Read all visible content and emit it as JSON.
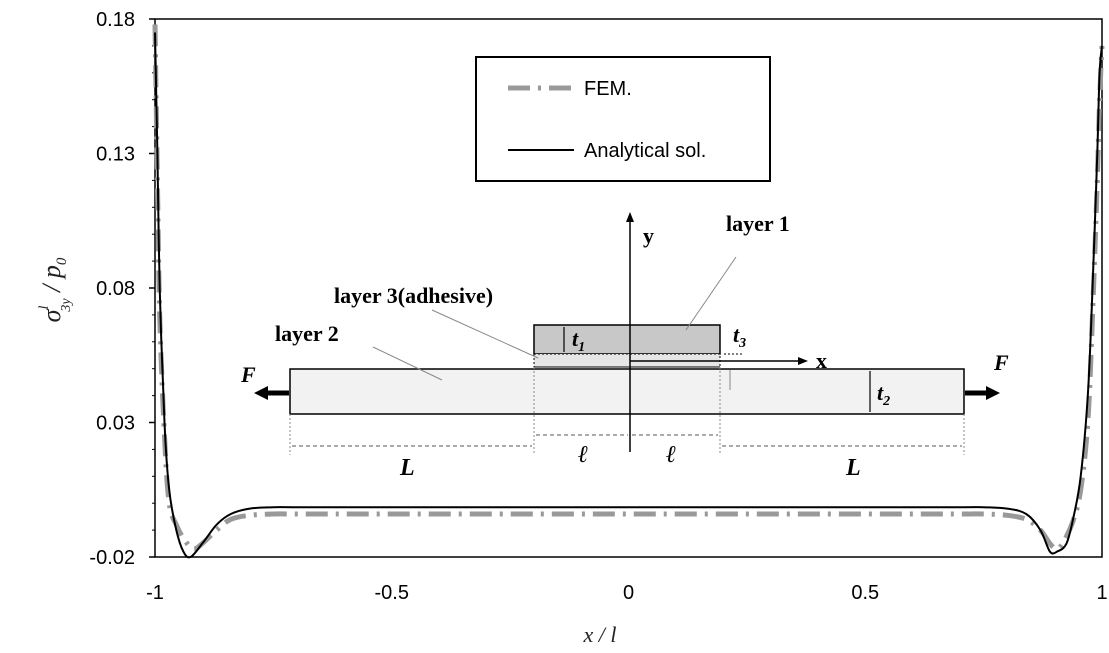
{
  "chart_data": {
    "type": "line",
    "title": "",
    "xlabel": "x / l",
    "ylabel_main": "σ",
    "ylabel_sup": "l",
    "ylabel_sub": "3y",
    "ylabel_rest": " / p",
    "ylabel_rest_sub": "0",
    "xlim": [
      -1,
      1
    ],
    "ylim": [
      -0.02,
      0.18
    ],
    "x_ticks": [
      "-1",
      "-0.5",
      "0",
      "0.5",
      "1"
    ],
    "y_ticks": [
      "-0.02",
      "0.03",
      "0.08",
      "0.13",
      "0.18"
    ],
    "legend_position": "top-center",
    "grid": false,
    "series": [
      {
        "name": "FEM.",
        "style": "dash-dot",
        "color": "#999999",
        "x": [
          -1,
          -0.995,
          -0.99,
          -0.98,
          -0.97,
          -0.955,
          -0.94,
          -0.92,
          -0.9,
          -0.87,
          -0.84,
          -0.8,
          -0.75,
          -0.7,
          -0.5,
          0,
          0.5,
          0.7,
          0.75,
          0.8,
          0.84,
          0.87,
          0.89,
          0.905,
          0.92,
          0.94,
          0.955,
          0.97,
          0.98,
          0.99,
          0.995,
          1
        ],
        "y": [
          0.178,
          0.12,
          0.07,
          0.025,
          0.0,
          -0.008,
          -0.013,
          -0.017,
          -0.015,
          -0.01,
          -0.006,
          -0.0045,
          -0.004,
          -0.004,
          -0.004,
          -0.004,
          -0.004,
          -0.004,
          -0.004,
          -0.0045,
          -0.006,
          -0.01,
          -0.015,
          -0.017,
          -0.014,
          -0.006,
          0.005,
          0.03,
          0.07,
          0.12,
          0.15,
          0.17
        ]
      },
      {
        "name": "Analytical sol.",
        "style": "solid",
        "color": "#000000",
        "x": [
          -1,
          -0.995,
          -0.99,
          -0.98,
          -0.97,
          -0.955,
          -0.94,
          -0.925,
          -0.9,
          -0.87,
          -0.84,
          -0.8,
          -0.75,
          -0.7,
          -0.5,
          0,
          0.5,
          0.7,
          0.75,
          0.8,
          0.84,
          0.87,
          0.89,
          0.905,
          0.925,
          0.94,
          0.955,
          0.97,
          0.98,
          0.99,
          0.995,
          1
        ],
        "y": [
          0.175,
          0.13,
          0.08,
          0.03,
          0.005,
          -0.01,
          -0.018,
          -0.02,
          -0.015,
          -0.008,
          -0.004,
          -0.002,
          -0.0015,
          -0.0015,
          -0.0015,
          -0.0015,
          -0.0015,
          -0.0015,
          -0.0015,
          -0.002,
          -0.004,
          -0.01,
          -0.018,
          -0.018,
          -0.015,
          -0.005,
          0.01,
          0.04,
          0.08,
          0.13,
          0.16,
          0.17
        ]
      }
    ]
  },
  "inset": {
    "layer1": "layer 1",
    "layer2": "layer 2",
    "layer3": "layer 3(adhesive)",
    "y_axis": "y",
    "x_axis": "x",
    "force_left": "F",
    "force_right": "F",
    "t1": "t",
    "t1_sub": "1",
    "t2": "t",
    "t2_sub": "2",
    "t3": "t",
    "t3_sub": "3",
    "L_left": "L",
    "L_right": "L",
    "ell_left": "ℓ",
    "ell_right": "ℓ"
  }
}
